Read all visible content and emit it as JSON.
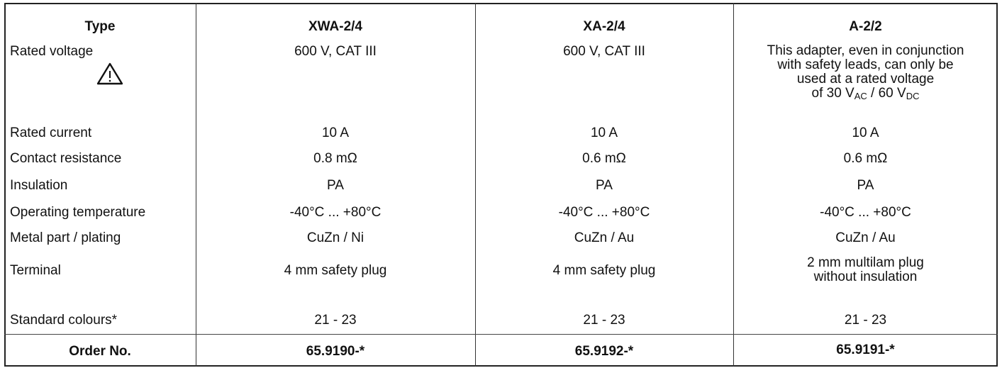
{
  "table": {
    "headers": [
      "Type",
      "XWA-2/4",
      "XA-2/4",
      "A-2/2"
    ],
    "rows": [
      {
        "label": "Rated voltage",
        "values": [
          "600 V, CAT III",
          "600 V, CAT III",
          "This adapter, even in conjunction with safety leads, can only be used at a rated voltage of 30 V_AC / 60 V_DC"
        ]
      },
      {
        "label": "Rated current",
        "values": [
          "10 A",
          "10 A",
          "10 A"
        ]
      },
      {
        "label": "Contact resistance",
        "values": [
          "0.8 mΩ",
          "0.6 mΩ",
          "0.6 mΩ"
        ]
      },
      {
        "label": "Insulation",
        "values": [
          "PA",
          "PA",
          "PA"
        ]
      },
      {
        "label": "Operating temperature",
        "values": [
          "-40°C ... +80°C",
          "-40°C ... +80°C",
          "-40°C ... +80°C"
        ]
      },
      {
        "label": "Metal part / plating",
        "values": [
          "CuZn / Ni",
          "CuZn / Au",
          "CuZn / Au"
        ]
      },
      {
        "label": "Terminal",
        "values": [
          "4 mm safety plug",
          "4 mm safety plug",
          "2 mm multilam plug without insulation"
        ]
      },
      {
        "label": "Standard colours*",
        "values": [
          "21 - 23",
          "21 - 23",
          "21 - 23"
        ]
      },
      {
        "label": "Order No.",
        "values": [
          "65.9190-*",
          "65.9192-*",
          "65.9191-*"
        ]
      }
    ],
    "rated_voltage_note": {
      "line1": "This adapter, even in conjunction",
      "line2": "with safety leads, can only be",
      "line3": "used at a rated voltage",
      "line4_prefix": "of 30 V",
      "sub_ac": "AC",
      "mid": " / 60 V",
      "sub_dc": "DC"
    },
    "terminal_note": {
      "line1": "2 mm multilam plug",
      "line2": "without insulation"
    },
    "warning_icon": "warning-triangle-icon"
  }
}
